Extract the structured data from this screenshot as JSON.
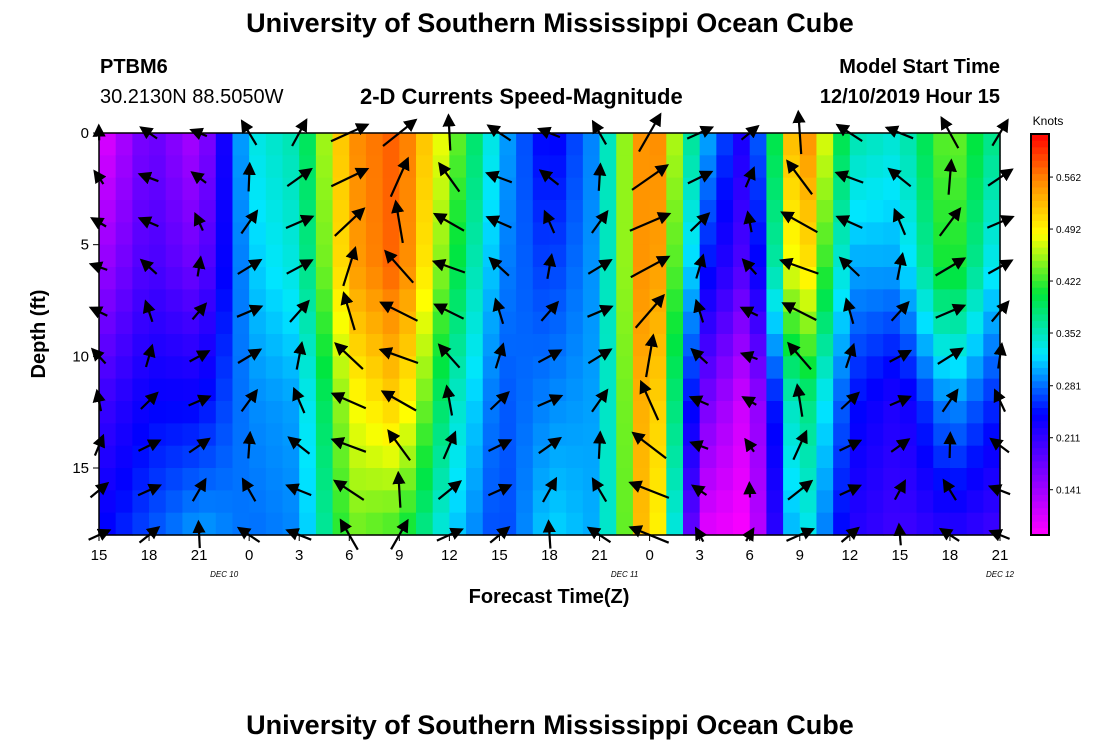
{
  "page": {
    "title_top": "University of Southern Mississippi Ocean Cube",
    "title_bottom": "University of Southern Mississippi Ocean Cube",
    "station": "PTBM6",
    "coords": "30.2130N 88.5050W",
    "subtitle": "2-D Currents Speed-Magnitude",
    "model_start_label": "Model Start Time",
    "model_start_value": "12/10/2019 Hour 15"
  },
  "chart_data": {
    "type": "heatmap",
    "title": "2-D Currents Speed-Magnitude",
    "xlabel": "Forecast Time(Z)",
    "ylabel": "Depth (ft)",
    "x_ticks": [
      "15",
      "18",
      "21",
      "0",
      "3",
      "6",
      "9",
      "12",
      "15",
      "18",
      "21",
      "0",
      "3",
      "6",
      "9",
      "12",
      "15",
      "18",
      "21"
    ],
    "day_labels": [
      {
        "label": "DEC 10",
        "tick_index": 2.5
      },
      {
        "label": "DEC 11",
        "tick_index": 10.5
      },
      {
        "label": "DEC 12",
        "tick_index": 18
      }
    ],
    "x_range_hours": [
      0,
      54
    ],
    "y_ticks": [
      0,
      5,
      10,
      15
    ],
    "y_range_ft": [
      0,
      18
    ],
    "colorbar": {
      "label": "Knots",
      "ticks": [
        "0.562",
        "0.492",
        "0.422",
        "0.352",
        "0.281",
        "0.211",
        "0.141"
      ],
      "range": [
        0.08,
        0.62
      ]
    },
    "time_hours": [
      0,
      3,
      6,
      9,
      12,
      15,
      18,
      21,
      24,
      27,
      30,
      33,
      36,
      39,
      42,
      45,
      48,
      51,
      54
    ],
    "columns_speed_surface_to_bottom": [
      [
        0.09,
        0.14,
        0.2,
        0.24
      ],
      [
        0.18,
        0.2,
        0.24,
        0.27
      ],
      [
        0.13,
        0.17,
        0.24,
        0.3
      ],
      [
        0.33,
        0.31,
        0.29,
        0.28
      ],
      [
        0.36,
        0.34,
        0.3,
        0.29
      ],
      [
        0.55,
        0.54,
        0.48,
        0.44
      ],
      [
        0.58,
        0.58,
        0.52,
        0.42
      ],
      [
        0.46,
        0.42,
        0.36,
        0.32
      ],
      [
        0.31,
        0.29,
        0.27,
        0.26
      ],
      [
        0.23,
        0.26,
        0.29,
        0.32
      ],
      [
        0.3,
        0.3,
        0.3,
        0.3
      ],
      [
        0.6,
        0.6,
        0.58,
        0.57
      ],
      [
        0.32,
        0.26,
        0.18,
        0.1
      ],
      [
        0.21,
        0.18,
        0.1,
        0.08
      ],
      [
        0.59,
        0.54,
        0.4,
        0.35
      ],
      [
        0.36,
        0.3,
        0.25,
        0.22
      ],
      [
        0.34,
        0.3,
        0.22,
        0.2
      ],
      [
        0.45,
        0.43,
        0.3,
        0.22
      ],
      [
        0.36,
        0.31,
        0.25,
        0.2
      ]
    ]
  },
  "colors": {
    "background": "#ffffff",
    "axis": "#000000"
  }
}
